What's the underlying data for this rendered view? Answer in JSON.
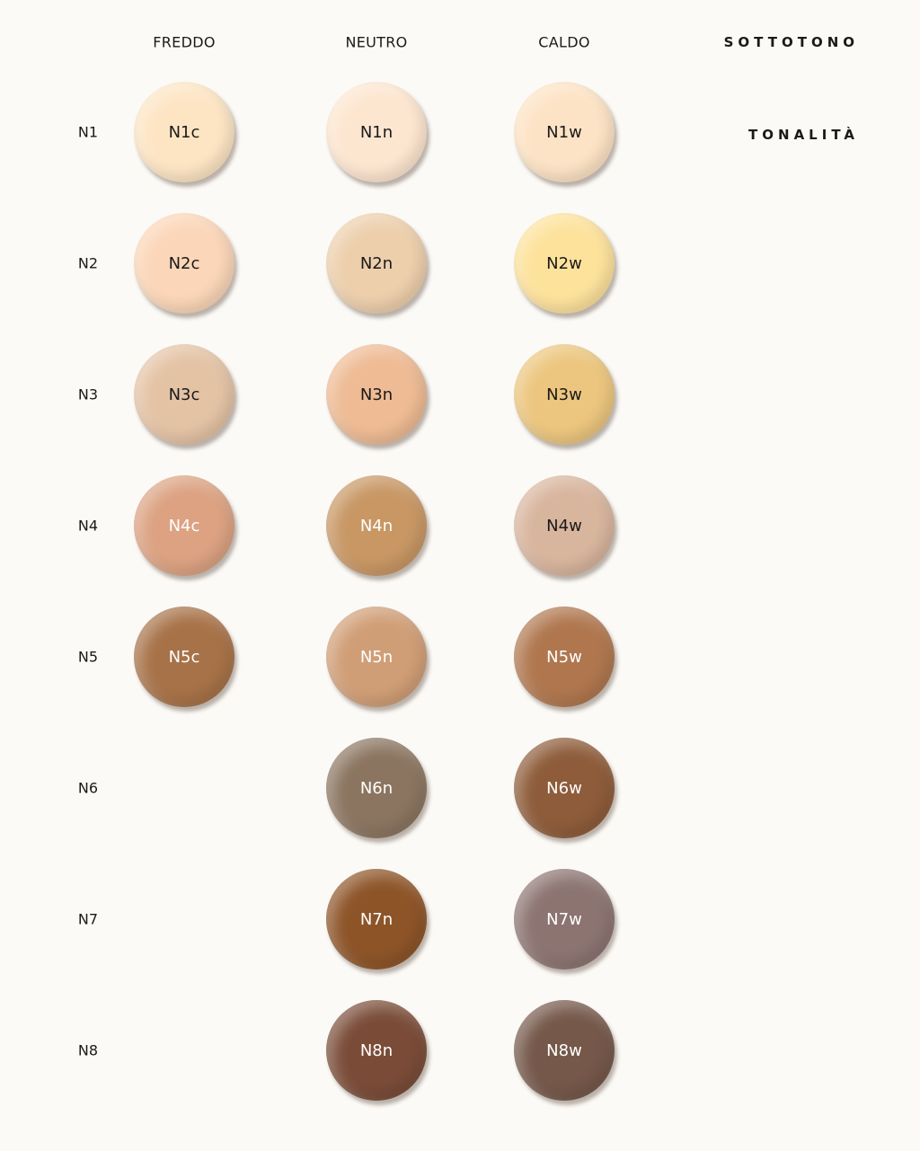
{
  "header": {
    "columns": [
      "FREDDO",
      "NEUTRO",
      "CALDO"
    ],
    "undertone_label": "SOTTOTONO",
    "shade_label": "TONALITÀ"
  },
  "rows": [
    {
      "label": "N1",
      "swatches": [
        {
          "name": "N1c",
          "color": "#fde5c4"
        },
        {
          "name": "N1n",
          "color": "#fde6d0"
        },
        {
          "name": "N1w",
          "color": "#fde3c5"
        }
      ]
    },
    {
      "label": "N2",
      "swatches": [
        {
          "name": "N2c",
          "color": "#fbd6b8"
        },
        {
          "name": "N2n",
          "color": "#edcfac"
        },
        {
          "name": "N2w",
          "color": "#fde29c"
        }
      ]
    },
    {
      "label": "N3",
      "swatches": [
        {
          "name": "N3c",
          "color": "#e4c3a5"
        },
        {
          "name": "N3n",
          "color": "#eebb94"
        },
        {
          "name": "N3w",
          "color": "#ecc67e"
        }
      ]
    },
    {
      "label": "N4",
      "swatches": [
        {
          "name": "N4c",
          "color": "#dca282"
        },
        {
          "name": "N4n",
          "color": "#c89764"
        },
        {
          "name": "N4w",
          "color": "#d8b59d"
        }
      ]
    },
    {
      "label": "N5",
      "swatches": [
        {
          "name": "N5c",
          "color": "#a77248"
        },
        {
          "name": "N5n",
          "color": "#d09e76"
        },
        {
          "name": "N5w",
          "color": "#b0774f"
        }
      ]
    },
    {
      "label": "N6",
      "swatches": [
        null,
        {
          "name": "N6n",
          "color": "#8b7560"
        },
        {
          "name": "N6w",
          "color": "#8e5c3a"
        }
      ]
    },
    {
      "label": "N7",
      "swatches": [
        null,
        {
          "name": "N7n",
          "color": "#8d5428"
        },
        {
          "name": "N7w",
          "color": "#8c7471"
        }
      ]
    },
    {
      "label": "N8",
      "swatches": [
        null,
        {
          "name": "N8n",
          "color": "#7a4c38"
        },
        {
          "name": "N8w",
          "color": "#75584a"
        }
      ]
    }
  ]
}
